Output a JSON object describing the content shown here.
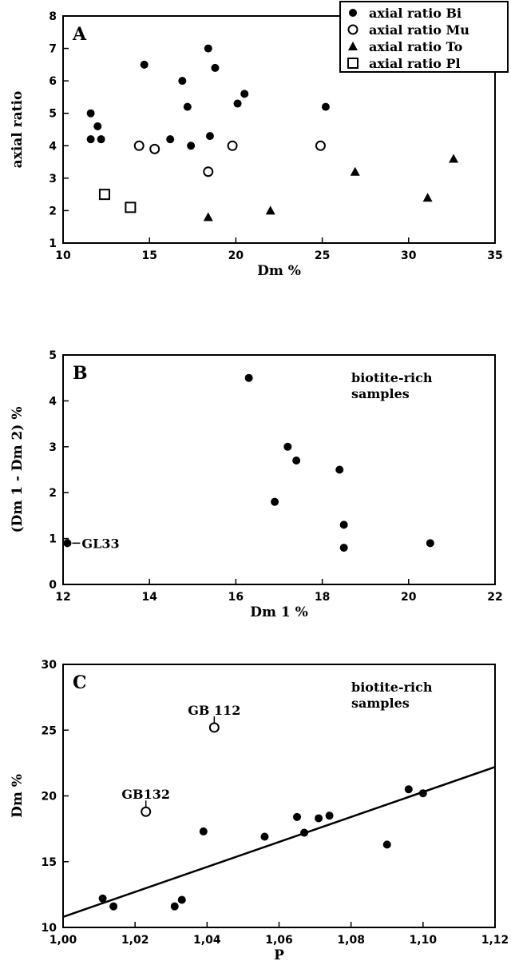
{
  "chart_data": [
    {
      "type": "scatter",
      "panel_label": "A",
      "xlabel": "Dm %",
      "ylabel": "axial ratio",
      "xlim": [
        10,
        35
      ],
      "ylim": [
        1,
        8
      ],
      "xticks": [
        10,
        15,
        20,
        25,
        30,
        35
      ],
      "yticks": [
        1,
        2,
        3,
        4,
        5,
        6,
        7,
        8
      ],
      "legend_position": "top-right",
      "series": [
        {
          "name": "axial ratio Bi",
          "marker": "filled-circle",
          "points": [
            [
              11.6,
              5.0
            ],
            [
              12.0,
              4.6
            ],
            [
              11.6,
              4.2
            ],
            [
              12.2,
              4.2
            ],
            [
              14.7,
              6.5
            ],
            [
              16.2,
              4.2
            ],
            [
              16.9,
              6.0
            ],
            [
              17.2,
              5.2
            ],
            [
              17.4,
              4.0
            ],
            [
              18.4,
              7.0
            ],
            [
              18.5,
              4.3
            ],
            [
              18.8,
              6.4
            ],
            [
              20.1,
              5.3
            ],
            [
              20.5,
              5.6
            ],
            [
              25.2,
              5.2
            ]
          ]
        },
        {
          "name": "axial ratio Mu",
          "marker": "open-circle",
          "points": [
            [
              14.4,
              4.0
            ],
            [
              15.3,
              3.9
            ],
            [
              18.4,
              3.2
            ],
            [
              19.8,
              4.0
            ],
            [
              24.9,
              4.0
            ]
          ]
        },
        {
          "name": "axial ratio To",
          "marker": "filled-triangle",
          "points": [
            [
              18.4,
              1.8
            ],
            [
              22.0,
              2.0
            ],
            [
              26.9,
              3.2
            ],
            [
              31.1,
              2.4
            ],
            [
              32.6,
              3.6
            ]
          ]
        },
        {
          "name": "axial ratio Pl",
          "marker": "open-square",
          "points": [
            [
              12.4,
              2.5
            ],
            [
              13.9,
              2.1
            ]
          ]
        }
      ]
    },
    {
      "type": "scatter",
      "panel_label": "B",
      "xlabel": "Dm 1 %",
      "ylabel": "(Dm 1 - Dm 2) %",
      "xlim": [
        12,
        22
      ],
      "ylim": [
        0,
        5
      ],
      "xticks": [
        12,
        14,
        16,
        18,
        20,
        22
      ],
      "yticks": [
        0,
        1,
        2,
        3,
        4,
        5
      ],
      "annotation": "biotite-rich\nsamples",
      "series": [
        {
          "marker": "filled-circle",
          "points": [
            [
              12.1,
              0.9
            ],
            [
              16.3,
              4.5
            ],
            [
              16.9,
              1.8
            ],
            [
              17.2,
              3.0
            ],
            [
              17.4,
              2.7
            ],
            [
              18.4,
              2.5
            ],
            [
              18.5,
              1.3
            ],
            [
              18.5,
              0.8
            ],
            [
              20.5,
              0.9
            ]
          ]
        }
      ],
      "point_labels": [
        {
          "text": "GL33",
          "x": 12.1,
          "y": 0.9
        }
      ]
    },
    {
      "type": "scatter",
      "panel_label": "C",
      "xlabel": "P",
      "ylabel": "Dm %",
      "xlim": [
        1.0,
        1.12
      ],
      "ylim": [
        10,
        30
      ],
      "xticks": [
        "1,00",
        "1,02",
        "1,04",
        "1,06",
        "1,08",
        "1,10",
        "1,12"
      ],
      "yticks": [
        10,
        15,
        20,
        25,
        30
      ],
      "annotation": "biotite-rich\nsamples",
      "series": [
        {
          "marker": "filled-circle",
          "points": [
            [
              1.011,
              12.2
            ],
            [
              1.014,
              11.6
            ],
            [
              1.031,
              11.6
            ],
            [
              1.033,
              12.1
            ],
            [
              1.039,
              17.3
            ],
            [
              1.056,
              16.9
            ],
            [
              1.065,
              18.4
            ],
            [
              1.067,
              17.2
            ],
            [
              1.071,
              18.3
            ],
            [
              1.074,
              18.5
            ],
            [
              1.09,
              16.3
            ],
            [
              1.096,
              20.5
            ],
            [
              1.1,
              20.2
            ]
          ]
        },
        {
          "marker": "open-circle",
          "points": [
            [
              1.023,
              18.8
            ],
            [
              1.042,
              25.2
            ]
          ]
        }
      ],
      "point_labels": [
        {
          "text": "GB132",
          "x": 1.023,
          "y": 18.8
        },
        {
          "text": "GB 112",
          "x": 1.042,
          "y": 25.2
        }
      ],
      "regression_line": [
        [
          1.0,
          10.8
        ],
        [
          1.12,
          22.2
        ]
      ]
    }
  ]
}
